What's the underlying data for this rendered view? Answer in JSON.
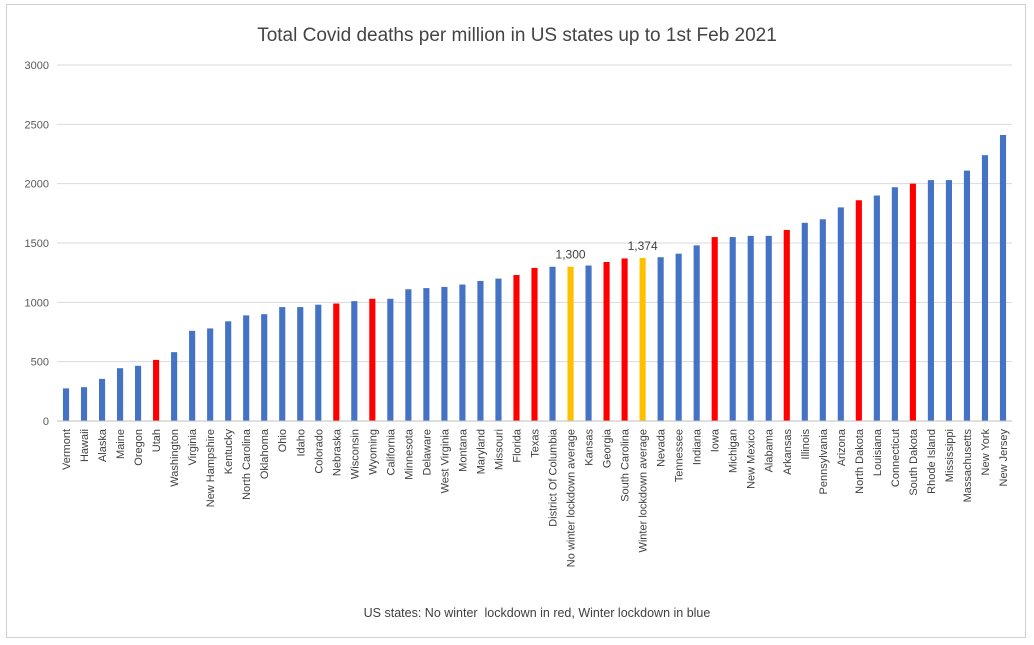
{
  "chart_data": {
    "type": "bar",
    "title": "Total Covid deaths per million in US states up to 1st Feb 2021",
    "xlabel": "US states: No winter  lockdown in red, Winter lockdown in blue",
    "ylabel": "",
    "ylim": [
      0,
      3000
    ],
    "yticks": [
      "0",
      "500",
      "1000",
      "1500",
      "2000",
      "2500",
      "3000"
    ],
    "grid": true,
    "colors": {
      "blue": "#4472c4",
      "red": "#ff0000",
      "gold": "#ffc000",
      "grid": "#d9d9d9",
      "axis": "#bfbfbf"
    },
    "categories": [
      "Vermont",
      "Hawaii",
      "Alaska",
      "Maine",
      "Oregon",
      "Utah",
      "Washington",
      "Virginia",
      "New Hampshire",
      "Kentucky",
      "North Carolina",
      "Oklahoma",
      "Ohio",
      "Idaho",
      "Colorado",
      "Nebraska",
      "Wisconsin",
      "Wyoming",
      "California",
      "Minnesota",
      "Delaware",
      "West Virginia",
      "Montana",
      "Maryland",
      "Missouri",
      "Florida",
      "Texas",
      "District Of Columbia",
      "No winter lockdown average",
      "Kansas",
      "Georgia",
      "South Carolina",
      "Winter lockdown average",
      "Nevada",
      "Tennessee",
      "Indiana",
      "Iowa",
      "Michigan",
      "New Mexico",
      "Alabama",
      "Arkansas",
      "Illinois",
      "Pennsylvania",
      "Arizona",
      "North Dakota",
      "Louisiana",
      "Connecticut",
      "South Dakota",
      "Rhode Island",
      "Mississippi",
      "Massachusetts",
      "New York",
      "New Jersey"
    ],
    "values": [
      275,
      285,
      355,
      445,
      465,
      515,
      580,
      760,
      780,
      840,
      890,
      900,
      960,
      960,
      980,
      990,
      1010,
      1030,
      1030,
      1110,
      1120,
      1130,
      1150,
      1180,
      1200,
      1230,
      1290,
      1300,
      1300,
      1310,
      1340,
      1370,
      1374,
      1380,
      1410,
      1480,
      1550,
      1550,
      1560,
      1560,
      1610,
      1670,
      1700,
      1800,
      1860,
      1900,
      1970,
      2000,
      2030,
      2030,
      2110,
      2240,
      2410
    ],
    "bar_colors": [
      "blue",
      "blue",
      "blue",
      "blue",
      "blue",
      "red",
      "blue",
      "blue",
      "blue",
      "blue",
      "blue",
      "blue",
      "blue",
      "blue",
      "blue",
      "red",
      "blue",
      "red",
      "blue",
      "blue",
      "blue",
      "blue",
      "blue",
      "blue",
      "blue",
      "red",
      "red",
      "blue",
      "gold",
      "blue",
      "red",
      "red",
      "gold",
      "blue",
      "blue",
      "blue",
      "red",
      "blue",
      "blue",
      "blue",
      "red",
      "blue",
      "blue",
      "blue",
      "red",
      "blue",
      "blue",
      "red",
      "blue",
      "blue",
      "blue",
      "blue",
      "blue"
    ],
    "data_labels": [
      {
        "category": "No winter lockdown average",
        "text": "1,300"
      },
      {
        "category": "Winter lockdown average",
        "text": "1,374"
      }
    ]
  }
}
